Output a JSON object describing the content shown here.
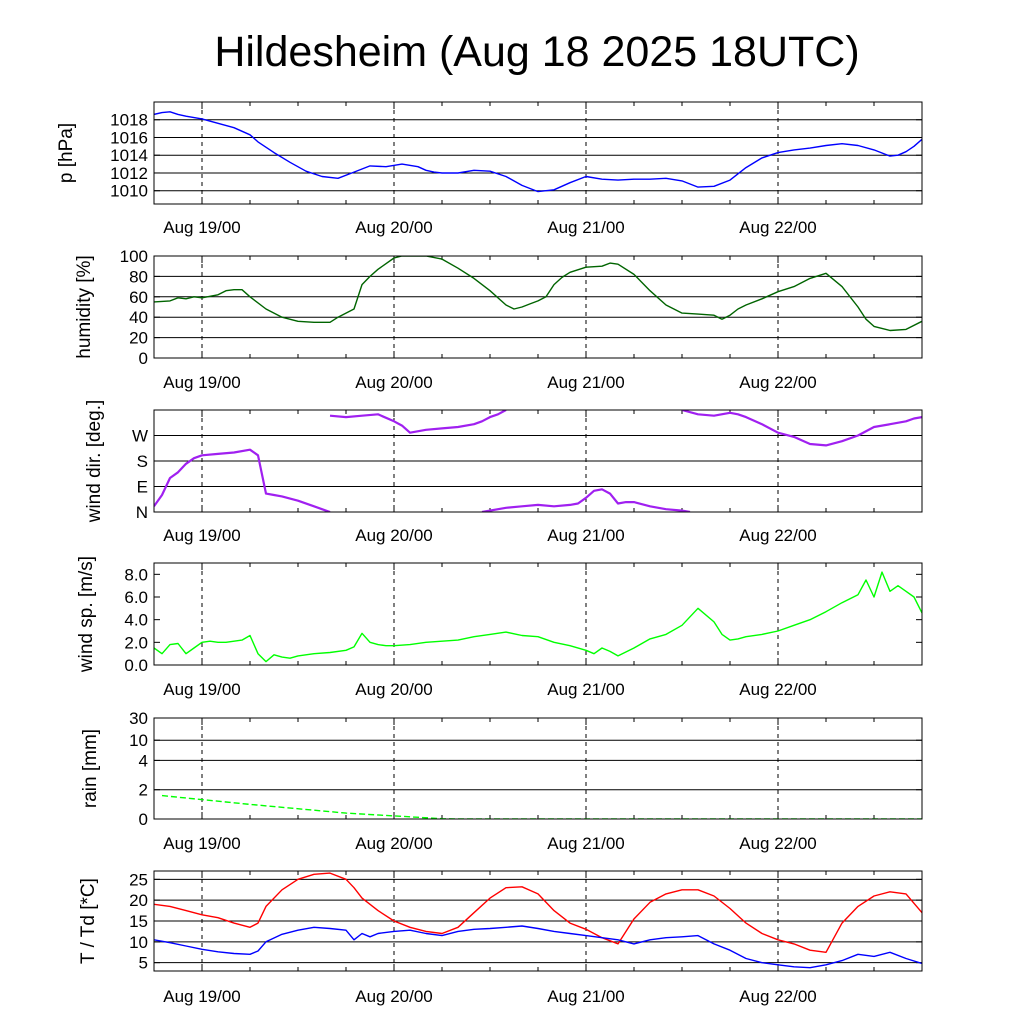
{
  "title": "Hildesheim (Aug 18 2025 18UTC)",
  "x_ticks": [
    "Aug 19/00",
    "Aug 20/00",
    "Aug 21/00",
    "Aug 22/00"
  ],
  "colors": {
    "pressure": "#0000ff",
    "humidity": "#006400",
    "wind_dir": "#a020f0",
    "wind_speed": "#00ff00",
    "rain": "#00ff00",
    "temperature": "#ff0000",
    "dewpoint": "#0000ff",
    "grid": "#000000"
  },
  "chart_data": [
    {
      "type": "line",
      "ylabel": "p [hPa]",
      "ylim": [
        1008.5,
        1020
      ],
      "yticks": [
        1010,
        1012,
        1014,
        1016,
        1018
      ],
      "ytick_labels": [
        "1010",
        "1012",
        "1014",
        "1016",
        "1018"
      ],
      "grid": true,
      "x_range_hours": [
        0,
        96
      ],
      "series": [
        {
          "color_key": "pressure",
          "x": [
            0,
            1,
            2,
            3,
            4,
            6,
            8,
            10,
            12,
            13,
            15,
            17,
            19,
            21,
            23,
            25,
            27,
            29,
            31,
            33,
            34,
            35,
            36,
            38,
            40,
            42,
            44,
            46,
            48,
            50,
            52,
            54,
            56,
            58,
            60,
            62,
            64,
            66,
            68,
            70,
            72,
            74,
            76,
            78,
            80,
            82,
            84,
            86,
            88,
            90,
            92,
            93,
            94,
            95,
            96
          ],
          "y": [
            1018.6,
            1018.8,
            1018.9,
            1018.6,
            1018.4,
            1018.1,
            1017.6,
            1017.1,
            1016.3,
            1015.5,
            1014.3,
            1013.2,
            1012.2,
            1011.6,
            1011.4,
            1012.1,
            1012.8,
            1012.7,
            1013.0,
            1012.7,
            1012.3,
            1012.1,
            1012.0,
            1012.0,
            1012.3,
            1012.2,
            1011.6,
            1010.6,
            1009.9,
            1010.1,
            1010.9,
            1011.6,
            1011.3,
            1011.2,
            1011.3,
            1011.3,
            1011.4,
            1011.1,
            1010.4,
            1010.5,
            1011.2,
            1012.6,
            1013.7,
            1014.3,
            1014.6,
            1014.8,
            1015.1,
            1015.3,
            1015.1,
            1014.6,
            1013.9,
            1014.0,
            1014.4,
            1015.0,
            1015.8
          ]
        }
      ]
    },
    {
      "type": "line",
      "ylabel": "humidity [%]",
      "ylim": [
        0,
        100
      ],
      "yticks": [
        0,
        20,
        40,
        60,
        80,
        100
      ],
      "ytick_labels": [
        "0",
        "20",
        "40",
        "60",
        "80",
        "100"
      ],
      "grid": true,
      "x_range_hours": [
        0,
        96
      ],
      "series": [
        {
          "color_key": "humidity",
          "x": [
            0,
            2,
            3,
            4,
            5,
            6,
            8,
            9,
            10,
            11,
            12,
            14,
            16,
            18,
            20,
            22,
            23,
            24,
            25,
            26,
            27,
            28,
            30,
            31,
            32,
            34,
            36,
            38,
            40,
            42,
            44,
            45,
            46,
            47,
            48,
            49,
            50,
            51,
            52,
            54,
            56,
            57,
            58,
            60,
            62,
            64,
            66,
            68,
            70,
            71,
            72,
            73,
            74,
            76,
            78,
            80,
            81,
            82,
            84,
            86,
            88,
            89,
            90,
            92,
            94,
            96
          ],
          "y": [
            55,
            56,
            59,
            58,
            60,
            59,
            62,
            66,
            67,
            67,
            60,
            48,
            40,
            36,
            35,
            35,
            40,
            44,
            48,
            72,
            80,
            87,
            98,
            100,
            100,
            100,
            97,
            88,
            78,
            66,
            52,
            48,
            50,
            53,
            56,
            60,
            72,
            79,
            84,
            89,
            90,
            93,
            92,
            82,
            66,
            52,
            44,
            43,
            42,
            38,
            42,
            48,
            52,
            58,
            65,
            70,
            74,
            78,
            83,
            70,
            50,
            38,
            31,
            27,
            28,
            36
          ]
        }
      ]
    },
    {
      "type": "scatter",
      "ylabel": "wind dir. [deg.]",
      "ylim": [
        0,
        360
      ],
      "yticks": [
        0,
        90,
        180,
        270
      ],
      "ytick_labels": [
        "N",
        "E",
        "S",
        "W"
      ],
      "grid": true,
      "x_range_hours": [
        0,
        96
      ],
      "series": [
        {
          "color_key": "wind_dir",
          "x": [
            0,
            1,
            2,
            3,
            4,
            5,
            6,
            8,
            10,
            12,
            13,
            14,
            15,
            16,
            18,
            20,
            21,
            22
          ],
          "y": [
            20,
            60,
            120,
            140,
            170,
            190,
            200,
            205,
            210,
            220,
            200,
            65,
            60,
            55,
            40,
            20,
            10,
            0
          ]
        },
        {
          "color_key": "wind_dir",
          "x": [
            22,
            24,
            26,
            28,
            30,
            31,
            32,
            34,
            36,
            38,
            40,
            41,
            42,
            43,
            44
          ],
          "y": [
            340,
            335,
            340,
            345,
            320,
            305,
            280,
            290,
            295,
            300,
            310,
            320,
            335,
            345,
            360
          ]
        },
        {
          "color_key": "wind_dir",
          "x": [
            41,
            44,
            46,
            48,
            50,
            52,
            53,
            54,
            55,
            56,
            57,
            58,
            59,
            60,
            62,
            64,
            66,
            67
          ],
          "y": [
            0,
            15,
            20,
            25,
            20,
            25,
            30,
            50,
            75,
            80,
            65,
            30,
            35,
            35,
            20,
            10,
            5,
            0
          ]
        },
        {
          "color_key": "wind_dir",
          "x": [
            66,
            68,
            70,
            72,
            73,
            74,
            76,
            78,
            80,
            82,
            84,
            86,
            88,
            90,
            92,
            94,
            95,
            96
          ],
          "y": [
            360,
            345,
            340,
            350,
            345,
            335,
            310,
            280,
            265,
            240,
            235,
            250,
            270,
            300,
            310,
            320,
            330,
            335
          ]
        }
      ]
    },
    {
      "type": "line",
      "ylabel": "wind sp. [m/s]",
      "ylim": [
        0,
        9
      ],
      "yticks": [
        0,
        2,
        4,
        6,
        8
      ],
      "ytick_labels": [
        "0.0",
        "2.0",
        "4.0",
        "6.0",
        "8.0"
      ],
      "grid": false,
      "x_range_hours": [
        0,
        96
      ],
      "series": [
        {
          "color_key": "wind_speed",
          "x": [
            0,
            1,
            2,
            3,
            4,
            5,
            6,
            7,
            8,
            9,
            10,
            11,
            12,
            13,
            14,
            15,
            16,
            17,
            18,
            19,
            20,
            22,
            24,
            25,
            26,
            27,
            28,
            29,
            30,
            32,
            34,
            36,
            38,
            40,
            42,
            44,
            46,
            48,
            50,
            52,
            54,
            55,
            56,
            57,
            58,
            60,
            62,
            63,
            64,
            66,
            68,
            70,
            71,
            72,
            73,
            74,
            76,
            78,
            80,
            82,
            84,
            86,
            88,
            89,
            90,
            91,
            92,
            93,
            94,
            95,
            96
          ],
          "y": [
            1.5,
            1.0,
            1.8,
            1.9,
            1.0,
            1.5,
            2.0,
            2.1,
            2.0,
            2.0,
            2.1,
            2.2,
            2.6,
            1.0,
            0.3,
            0.9,
            0.7,
            0.6,
            0.8,
            0.9,
            1.0,
            1.1,
            1.3,
            1.6,
            2.8,
            2.0,
            1.8,
            1.7,
            1.7,
            1.8,
            2.0,
            2.1,
            2.2,
            2.5,
            2.7,
            2.9,
            2.6,
            2.5,
            2.0,
            1.7,
            1.3,
            1.0,
            1.5,
            1.2,
            0.8,
            1.5,
            2.3,
            2.5,
            2.7,
            3.5,
            5.0,
            3.8,
            2.7,
            2.2,
            2.3,
            2.5,
            2.7,
            3.0,
            3.5,
            4.0,
            4.7,
            5.5,
            6.2,
            7.5,
            6.0,
            8.2,
            6.5,
            7.0,
            6.5,
            6.0,
            4.6
          ]
        }
      ]
    },
    {
      "type": "line",
      "ylabel": "rain [mm]",
      "yscale": "log-like",
      "ylim_display": [
        0,
        30
      ],
      "yticks": [
        0,
        2,
        4,
        10,
        30
      ],
      "ytick_labels": [
        "0",
        "2",
        "4",
        "10",
        "30"
      ],
      "grid": true,
      "x_range_hours": [
        0,
        96
      ],
      "series": [
        {
          "color_key": "rain",
          "x": [
            1,
            12,
            24,
            36,
            38,
            40,
            96
          ],
          "y": [
            1.6,
            1.0,
            0.4,
            0.02,
            0,
            0,
            0
          ]
        }
      ]
    },
    {
      "type": "line",
      "ylabel": "T / Td [*C]",
      "ylim": [
        3,
        27
      ],
      "yticks": [
        5,
        10,
        15,
        20,
        25
      ],
      "ytick_labels": [
        "5",
        "10",
        "15",
        "20",
        "25"
      ],
      "grid": true,
      "x_range_hours": [
        0,
        96
      ],
      "series": [
        {
          "color_key": "temperature",
          "x": [
            0,
            2,
            4,
            6,
            8,
            10,
            12,
            13,
            14,
            16,
            18,
            20,
            22,
            24,
            25,
            26,
            28,
            30,
            32,
            34,
            36,
            38,
            40,
            42,
            44,
            46,
            48,
            50,
            52,
            54,
            56,
            58,
            60,
            62,
            64,
            66,
            68,
            70,
            72,
            74,
            76,
            78,
            80,
            82,
            84,
            86,
            88,
            90,
            92,
            94,
            96
          ],
          "y": [
            19.0,
            18.5,
            17.5,
            16.5,
            15.8,
            14.5,
            13.5,
            14.5,
            18.5,
            22.5,
            25.0,
            26.2,
            26.5,
            25.0,
            23.0,
            20.5,
            17.5,
            15.0,
            13.5,
            12.5,
            12.0,
            13.5,
            17.0,
            20.5,
            23.0,
            23.2,
            21.5,
            17.5,
            14.5,
            13.0,
            11.0,
            9.5,
            15.5,
            19.5,
            21.5,
            22.5,
            22.5,
            21.0,
            18.0,
            14.5,
            12.0,
            10.5,
            9.5,
            8.0,
            7.5,
            14.5,
            18.5,
            21.0,
            22.0,
            21.5,
            17.0
          ]
        },
        {
          "color_key": "dewpoint",
          "x": [
            0,
            2,
            4,
            6,
            8,
            10,
            12,
            13,
            14,
            16,
            18,
            20,
            22,
            24,
            25,
            26,
            27,
            28,
            30,
            32,
            34,
            36,
            38,
            40,
            42,
            44,
            46,
            48,
            50,
            52,
            54,
            56,
            58,
            60,
            62,
            64,
            66,
            68,
            70,
            72,
            74,
            76,
            78,
            80,
            82,
            84,
            86,
            88,
            90,
            92,
            94,
            96
          ],
          "y": [
            10.5,
            9.8,
            9.0,
            8.2,
            7.6,
            7.2,
            7.0,
            7.8,
            10.0,
            11.8,
            12.8,
            13.5,
            13.2,
            12.8,
            10.5,
            12.0,
            11.2,
            12.0,
            12.5,
            12.8,
            12.0,
            11.5,
            12.5,
            13.0,
            13.2,
            13.5,
            13.8,
            13.2,
            12.5,
            12.0,
            11.5,
            11.0,
            10.5,
            9.5,
            10.5,
            11.0,
            11.2,
            11.5,
            9.5,
            8.0,
            6.0,
            5.0,
            4.5,
            4.0,
            3.8,
            4.5,
            5.5,
            7.0,
            6.5,
            7.5,
            6.0,
            4.8
          ]
        }
      ]
    }
  ]
}
